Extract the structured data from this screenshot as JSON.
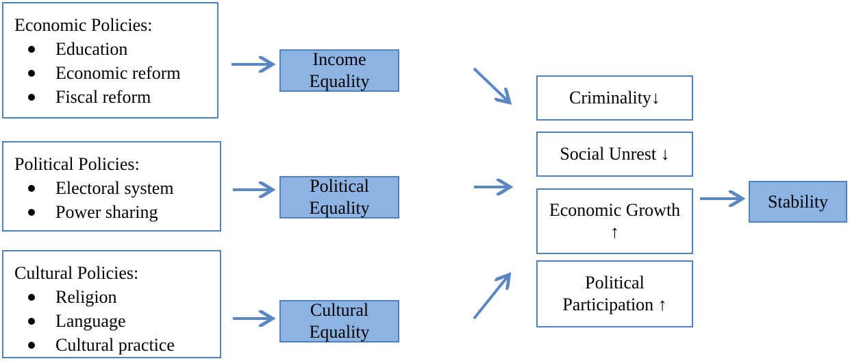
{
  "policies": [
    {
      "title": "Economic Policies:",
      "items": [
        "Education",
        "Economic reform",
        "Fiscal reform"
      ]
    },
    {
      "title": "Political Policies:",
      "items": [
        "Electoral system",
        "Power sharing"
      ]
    },
    {
      "title": "Cultural Policies:",
      "items": [
        "Religion",
        "Language",
        "Cultural practice"
      ]
    }
  ],
  "equalities": [
    "Income Equality",
    "Political Equality",
    "Cultural Equality"
  ],
  "outcomes": [
    "Criminality↓",
    "Social Unrest ↓",
    "Economic Growth ↑",
    "Political Participation ↑"
  ],
  "result": "Stability"
}
